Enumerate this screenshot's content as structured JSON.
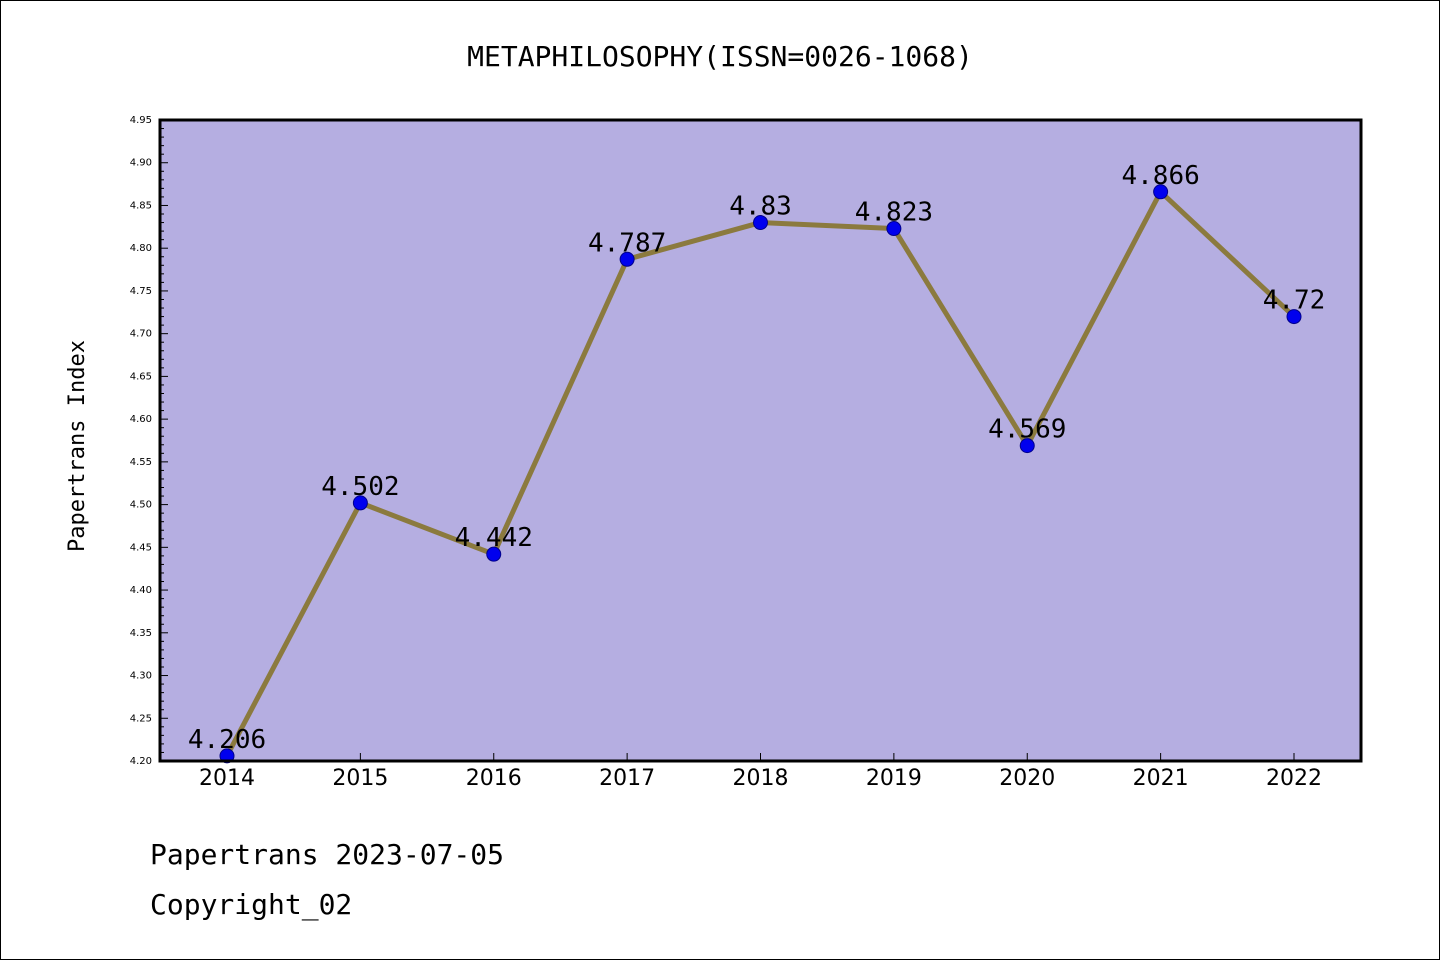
{
  "chart_data": {
    "type": "line",
    "title": "METAPHILOSOPHY(ISSN=0026-1068)",
    "xlabel": "",
    "ylabel": "Papertrans Index",
    "categories": [
      "2014",
      "2015",
      "2016",
      "2017",
      "2018",
      "2019",
      "2020",
      "2021",
      "2022"
    ],
    "series": [
      {
        "values": [
          4.206,
          4.502,
          4.442,
          4.787,
          4.83,
          4.823,
          4.569,
          4.866,
          4.72
        ]
      }
    ],
    "data_labels": [
      "4.206",
      "4.502",
      "4.442",
      "4.787",
      "4.83",
      "4.823",
      "4.569",
      "4.866",
      "4.72"
    ],
    "ylim": [
      4.2,
      4.95
    ],
    "yticks": [
      "4.20",
      "4.25",
      "4.30",
      "4.35",
      "4.40",
      "4.45",
      "4.50",
      "4.55",
      "4.60",
      "4.65",
      "4.70",
      "4.75",
      "4.80",
      "4.85",
      "4.90",
      "4.95"
    ],
    "grid": false,
    "colors": {
      "plot_background": "#b5aee1",
      "line": "#8b7a3e",
      "marker": "#0000ee",
      "marker_edge": "#00008b"
    }
  },
  "footer": {
    "line1": "Papertrans 2023-07-05",
    "line2": "Copyright_02"
  }
}
